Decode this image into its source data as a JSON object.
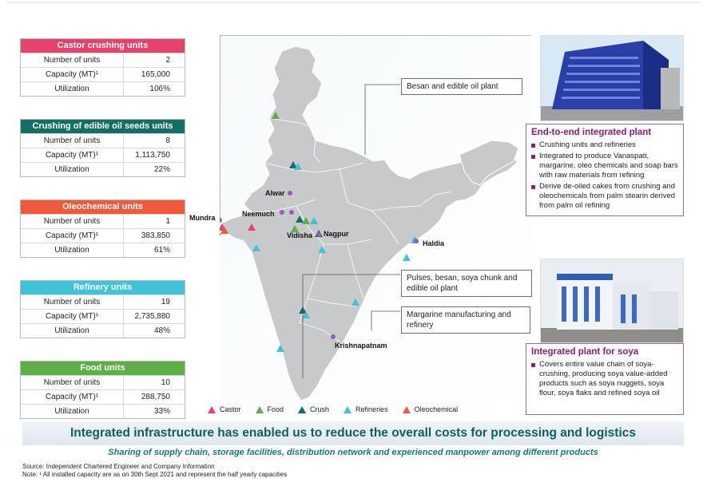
{
  "tables": [
    {
      "title": "Castor crushing units",
      "color": "#e7416e",
      "rows": [
        {
          "label": "Number of units",
          "value": "2"
        },
        {
          "label": "Capacity (MT)¹",
          "value": "165,000"
        },
        {
          "label": "Utilization",
          "value": "106%"
        }
      ]
    },
    {
      "title": "Crushing of edible oil seeds units",
      "color": "#136e64",
      "rows": [
        {
          "label": "Number of units",
          "value": "8"
        },
        {
          "label": "Capacity (MT)¹",
          "value": "1,113,750"
        },
        {
          "label": "Utilization",
          "value": "22%"
        }
      ]
    },
    {
      "title": "Oleochemical units",
      "color": "#ef5a3c",
      "rows": [
        {
          "label": "Number of units",
          "value": "1"
        },
        {
          "label": "Capacity (MT)¹",
          "value": "383,850"
        },
        {
          "label": "Utilization",
          "value": "61%"
        }
      ]
    },
    {
      "title": "Refinery units",
      "color": "#3fc3d8",
      "rows": [
        {
          "label": "Number of units",
          "value": "19"
        },
        {
          "label": "Capacity (MT)¹",
          "value": "2,735,880"
        },
        {
          "label": "Utilization",
          "value": "48%"
        }
      ]
    },
    {
      "title": "Food units",
      "color": "#5fae4a",
      "rows": [
        {
          "label": "Number of units",
          "value": "10"
        },
        {
          "label": "Capacity (MT)¹",
          "value": "288,750"
        },
        {
          "label": "Utilization",
          "value": "33%"
        }
      ]
    }
  ],
  "map": {
    "cities": [
      "Mundra",
      "Neemuch",
      "Alwar",
      "Vidisha",
      "Nagpur",
      "Haldia",
      "Krishnapatnam"
    ],
    "callouts": {
      "besan": "Besan and edible oil plant",
      "pulses": "Pulses, besan, soya chunk and edible oil plant",
      "margarine": "Margarine manufacturing and refinery"
    },
    "legend": [
      {
        "label": "Castor",
        "color": "#e7416e"
      },
      {
        "label": "Food",
        "color": "#5fae4a"
      },
      {
        "label": "Crush",
        "color": "#136e64"
      },
      {
        "label": "Refineries",
        "color": "#3fc3d8"
      },
      {
        "label": "Oleochemical",
        "color": "#ef5a3c"
      }
    ]
  },
  "integrated_plant": {
    "title": "End-to-end integrated plant",
    "bullets": [
      "Crushing units and refineries",
      "Integrated to produce Vanaspati, margarine, oleo chemicals and soap bars with raw materials from refining",
      "Derive de-oiled cakes from crushing and oleochemicals from palm stearin derived from palm oil refining"
    ]
  },
  "soya_plant": {
    "title": "Integrated plant for soya",
    "bullets": [
      "Covers entire value chain of soya-crushing, producing soya value-added products such as soya nuggets, soya flour, soya flaks and refined soya oil"
    ]
  },
  "banner": "Integrated infrastructure has enabled us to reduce the overall costs for processing and logistics",
  "subtitle": "Sharing of supply chain, storage facilities, distribution network and experienced manpower among different products",
  "source": "Source: Independent Chartered Engineer and Company Information",
  "note": "Note: ¹ All installed capacity are as on 30th Sept 2021 and represent the half yearly capacities",
  "colors": {
    "accent": "#8b1f7a",
    "banner_text": "#0f5f5a",
    "map_fill": "#c9cacc"
  }
}
